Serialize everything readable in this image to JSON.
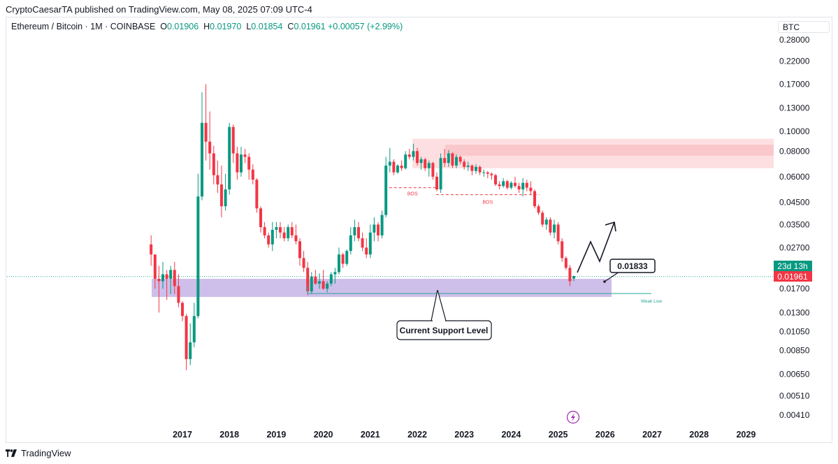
{
  "publisher": "CryptoCaesarTA published on TradingView.com, May 08, 2025 07:09 UTC-4",
  "legend": {
    "symbol": "Ethereum / Bitcoin · 1M · COINBASE",
    "o_label": "O",
    "o_value": "0.01906",
    "h_label": "H",
    "h_value": "0.01970",
    "l_label": "L",
    "l_value": "0.01854",
    "c_label": "C",
    "c_value": "0.01961",
    "change": "+0.00057 (+2.99%)"
  },
  "currency": "BTC",
  "footer": {
    "brand": "TradingView"
  },
  "colors": {
    "up": "#089981",
    "down": "#f23645",
    "support_zone": "#c5b3e6",
    "resistance_zone": "#fcd7da",
    "teal_line": "#26a69a",
    "bos": "#f23645"
  },
  "chart_data": {
    "type": "candlestick",
    "title": "Ethereum / Bitcoin · 1M · COINBASE",
    "scale": "log",
    "ylim": [
      0.0037,
      0.31
    ],
    "y_ticks": [
      "0.28000",
      "0.22000",
      "0.17000",
      "0.13000",
      "0.10000",
      "0.08000",
      "0.06000",
      "0.04500",
      "0.03500",
      "0.02700",
      "0.01700",
      "0.01300",
      "0.01050",
      "0.00850",
      "0.00650",
      "0.00510",
      "0.00410"
    ],
    "x_ticks": [
      "2017",
      "2018",
      "2019",
      "2020",
      "2021",
      "2022",
      "2023",
      "2024",
      "2025",
      "2026",
      "2027",
      "2028",
      "2029"
    ],
    "last_price": "0.01961",
    "countdown": "23d 13h",
    "annotations": {
      "target_price": "0.01833",
      "support_label": "Current Support Level",
      "bos_1": "BOS",
      "bos_2": "BOS",
      "weak_low": "Weak Low"
    },
    "zones": {
      "support": [
        0.0155,
        0.019
      ],
      "resistance": [
        0.066,
        0.092
      ]
    },
    "candles": [
      [
        2016.333,
        0.028,
        0.031,
        0.022,
        0.025
      ],
      [
        2016.417,
        0.025,
        0.025,
        0.017,
        0.019
      ],
      [
        2016.5,
        0.019,
        0.022,
        0.013,
        0.0185
      ],
      [
        2016.583,
        0.0185,
        0.023,
        0.017,
        0.02
      ],
      [
        2016.667,
        0.02,
        0.021,
        0.015,
        0.019
      ],
      [
        2016.75,
        0.019,
        0.022,
        0.016,
        0.021
      ],
      [
        2016.833,
        0.021,
        0.023,
        0.016,
        0.0175
      ],
      [
        2016.917,
        0.0175,
        0.02,
        0.0138,
        0.0145
      ],
      [
        2017.0,
        0.0145,
        0.0148,
        0.0118,
        0.0125
      ],
      [
        2017.083,
        0.0125,
        0.0128,
        0.0068,
        0.0077
      ],
      [
        2017.167,
        0.0077,
        0.0115,
        0.0072,
        0.0093
      ],
      [
        2017.25,
        0.0093,
        0.0145,
        0.0088,
        0.0125
      ],
      [
        2017.333,
        0.0125,
        0.062,
        0.0122,
        0.048
      ],
      [
        2017.417,
        0.048,
        0.155,
        0.046,
        0.11
      ],
      [
        2017.5,
        0.11,
        0.17,
        0.072,
        0.089
      ],
      [
        2017.583,
        0.089,
        0.125,
        0.065,
        0.078
      ],
      [
        2017.667,
        0.078,
        0.085,
        0.055,
        0.061
      ],
      [
        2017.75,
        0.061,
        0.072,
        0.05,
        0.055
      ],
      [
        2017.833,
        0.055,
        0.068,
        0.038,
        0.043
      ],
      [
        2017.917,
        0.043,
        0.062,
        0.041,
        0.052
      ],
      [
        2018.0,
        0.052,
        0.11,
        0.049,
        0.105
      ],
      [
        2018.083,
        0.105,
        0.108,
        0.07,
        0.078
      ],
      [
        2018.167,
        0.078,
        0.084,
        0.058,
        0.063
      ],
      [
        2018.25,
        0.063,
        0.084,
        0.06,
        0.077
      ],
      [
        2018.333,
        0.077,
        0.082,
        0.07,
        0.075
      ],
      [
        2018.417,
        0.075,
        0.078,
        0.058,
        0.065
      ],
      [
        2018.5,
        0.065,
        0.069,
        0.055,
        0.058
      ],
      [
        2018.583,
        0.058,
        0.059,
        0.04,
        0.042
      ],
      [
        2018.667,
        0.042,
        0.043,
        0.032,
        0.034
      ],
      [
        2018.75,
        0.034,
        0.036,
        0.03,
        0.031
      ],
      [
        2018.833,
        0.031,
        0.032,
        0.027,
        0.028
      ],
      [
        2018.917,
        0.028,
        0.036,
        0.026,
        0.033
      ],
      [
        2019.0,
        0.033,
        0.036,
        0.03,
        0.034
      ],
      [
        2019.083,
        0.034,
        0.036,
        0.03,
        0.032
      ],
      [
        2019.167,
        0.032,
        0.034,
        0.029,
        0.03
      ],
      [
        2019.25,
        0.03,
        0.035,
        0.029,
        0.034
      ],
      [
        2019.333,
        0.034,
        0.036,
        0.03,
        0.031
      ],
      [
        2019.417,
        0.031,
        0.035,
        0.028,
        0.029
      ],
      [
        2019.5,
        0.029,
        0.03,
        0.022,
        0.024
      ],
      [
        2019.583,
        0.024,
        0.026,
        0.0205,
        0.0215
      ],
      [
        2019.667,
        0.0215,
        0.023,
        0.0158,
        0.0165
      ],
      [
        2019.75,
        0.0165,
        0.0205,
        0.016,
        0.0195
      ],
      [
        2019.833,
        0.0195,
        0.021,
        0.0178,
        0.018
      ],
      [
        2019.917,
        0.018,
        0.0202,
        0.017,
        0.0185
      ],
      [
        2020.0,
        0.0185,
        0.021,
        0.0168,
        0.017
      ],
      [
        2020.083,
        0.017,
        0.0185,
        0.0163,
        0.018
      ],
      [
        2020.167,
        0.018,
        0.0205,
        0.0175,
        0.02
      ],
      [
        2020.25,
        0.02,
        0.0215,
        0.018,
        0.0205
      ],
      [
        2020.333,
        0.0205,
        0.027,
        0.02,
        0.025
      ],
      [
        2020.417,
        0.025,
        0.0255,
        0.0215,
        0.0225
      ],
      [
        2020.5,
        0.0225,
        0.0265,
        0.022,
        0.026
      ],
      [
        2020.583,
        0.026,
        0.034,
        0.025,
        0.031
      ],
      [
        2020.667,
        0.031,
        0.037,
        0.029,
        0.034
      ],
      [
        2020.75,
        0.034,
        0.036,
        0.029,
        0.03
      ],
      [
        2020.833,
        0.03,
        0.032,
        0.026,
        0.027
      ],
      [
        2020.917,
        0.027,
        0.03,
        0.024,
        0.025
      ],
      [
        2021.0,
        0.025,
        0.035,
        0.024,
        0.032
      ],
      [
        2021.083,
        0.032,
        0.038,
        0.029,
        0.035
      ],
      [
        2021.167,
        0.035,
        0.036,
        0.029,
        0.031
      ],
      [
        2021.25,
        0.031,
        0.041,
        0.03,
        0.039
      ],
      [
        2021.333,
        0.039,
        0.075,
        0.038,
        0.068
      ],
      [
        2021.417,
        0.068,
        0.083,
        0.063,
        0.071
      ],
      [
        2021.5,
        0.071,
        0.073,
        0.061,
        0.063
      ],
      [
        2021.583,
        0.063,
        0.069,
        0.062,
        0.068
      ],
      [
        2021.667,
        0.068,
        0.072,
        0.064,
        0.066
      ],
      [
        2021.75,
        0.066,
        0.08,
        0.065,
        0.077
      ],
      [
        2021.833,
        0.077,
        0.082,
        0.073,
        0.075
      ],
      [
        2021.917,
        0.075,
        0.087,
        0.072,
        0.08
      ],
      [
        2022.0,
        0.08,
        0.083,
        0.068,
        0.07
      ],
      [
        2022.083,
        0.07,
        0.075,
        0.065,
        0.073
      ],
      [
        2022.167,
        0.073,
        0.074,
        0.064,
        0.066
      ],
      [
        2022.25,
        0.066,
        0.072,
        0.06,
        0.07
      ],
      [
        2022.333,
        0.07,
        0.071,
        0.058,
        0.06
      ],
      [
        2022.417,
        0.06,
        0.063,
        0.051,
        0.052
      ],
      [
        2022.5,
        0.052,
        0.078,
        0.05,
        0.074
      ],
      [
        2022.583,
        0.074,
        0.082,
        0.067,
        0.07
      ],
      [
        2022.667,
        0.07,
        0.081,
        0.067,
        0.078
      ],
      [
        2022.75,
        0.078,
        0.079,
        0.066,
        0.068
      ],
      [
        2022.833,
        0.068,
        0.077,
        0.066,
        0.075
      ],
      [
        2022.917,
        0.075,
        0.076,
        0.069,
        0.071
      ],
      [
        2023.0,
        0.071,
        0.073,
        0.065,
        0.067
      ],
      [
        2023.083,
        0.067,
        0.071,
        0.064,
        0.068
      ],
      [
        2023.167,
        0.068,
        0.069,
        0.061,
        0.064
      ],
      [
        2023.25,
        0.064,
        0.069,
        0.062,
        0.067
      ],
      [
        2023.333,
        0.067,
        0.068,
        0.061,
        0.063
      ],
      [
        2023.417,
        0.063,
        0.065,
        0.06,
        0.063
      ],
      [
        2023.5,
        0.063,
        0.064,
        0.059,
        0.062
      ],
      [
        2023.583,
        0.062,
        0.063,
        0.058,
        0.061
      ],
      [
        2023.667,
        0.061,
        0.062,
        0.054,
        0.055
      ],
      [
        2023.75,
        0.055,
        0.057,
        0.052,
        0.054
      ],
      [
        2023.833,
        0.054,
        0.059,
        0.053,
        0.057
      ],
      [
        2023.917,
        0.057,
        0.058,
        0.052,
        0.053
      ],
      [
        2024.0,
        0.053,
        0.057,
        0.052,
        0.056
      ],
      [
        2024.083,
        0.056,
        0.06,
        0.053,
        0.054
      ],
      [
        2024.167,
        0.054,
        0.056,
        0.05,
        0.052
      ],
      [
        2024.25,
        0.052,
        0.059,
        0.048,
        0.056
      ],
      [
        2024.333,
        0.056,
        0.058,
        0.051,
        0.053
      ],
      [
        2024.417,
        0.053,
        0.057,
        0.049,
        0.051
      ],
      [
        2024.5,
        0.051,
        0.052,
        0.042,
        0.043
      ],
      [
        2024.583,
        0.043,
        0.044,
        0.039,
        0.04
      ],
      [
        2024.667,
        0.04,
        0.041,
        0.034,
        0.035
      ],
      [
        2024.75,
        0.035,
        0.038,
        0.033,
        0.037
      ],
      [
        2024.833,
        0.037,
        0.038,
        0.031,
        0.032
      ],
      [
        2024.917,
        0.032,
        0.037,
        0.03,
        0.035
      ],
      [
        2025.0,
        0.035,
        0.036,
        0.028,
        0.029
      ],
      [
        2025.083,
        0.029,
        0.03,
        0.023,
        0.024
      ],
      [
        2025.167,
        0.024,
        0.0245,
        0.021,
        0.0215
      ],
      [
        2025.25,
        0.0215,
        0.0222,
        0.0175,
        0.0185
      ],
      [
        2025.333,
        0.01906,
        0.0197,
        0.01854,
        0.01961
      ]
    ]
  }
}
